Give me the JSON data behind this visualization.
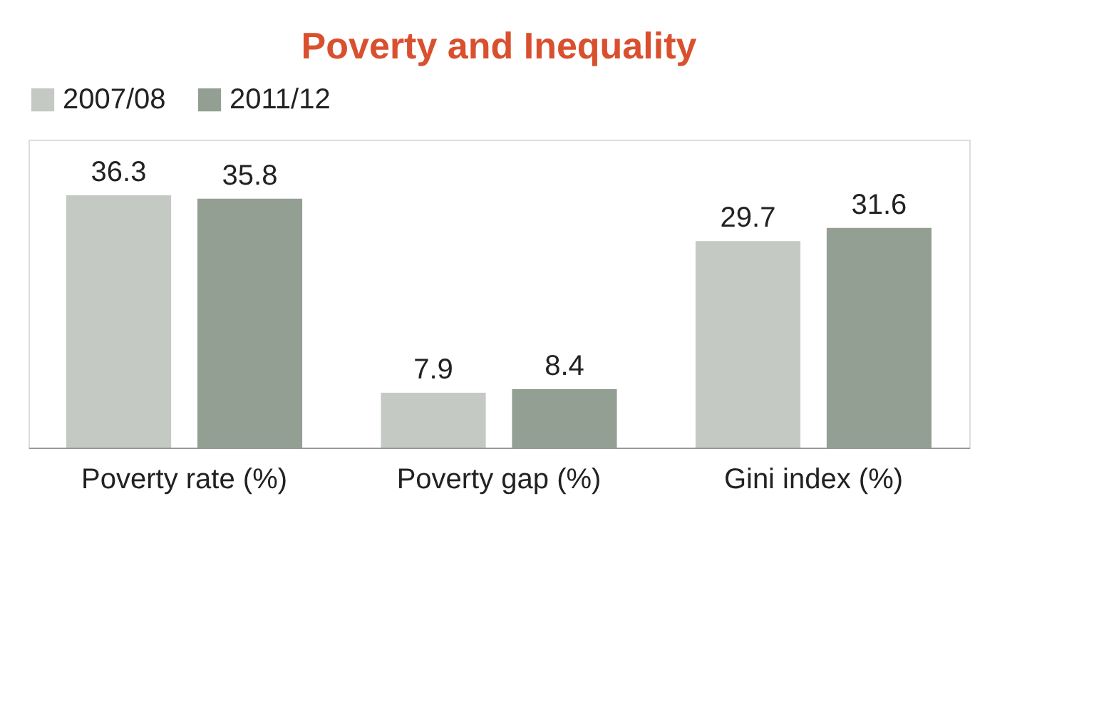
{
  "chart_data": {
    "type": "bar",
    "title": "Poverty and Inequality",
    "categories": [
      "Poverty rate (%)",
      "Poverty gap (%)",
      "Gini index (%)"
    ],
    "series": [
      {
        "name": "2007/08",
        "color": "#c4c9c4",
        "values": [
          36.3,
          7.9,
          29.7
        ]
      },
      {
        "name": "2011/12",
        "color": "#949f94",
        "values": [
          35.8,
          8.4,
          31.6
        ]
      }
    ],
    "data_labels": true,
    "legend": "top"
  }
}
